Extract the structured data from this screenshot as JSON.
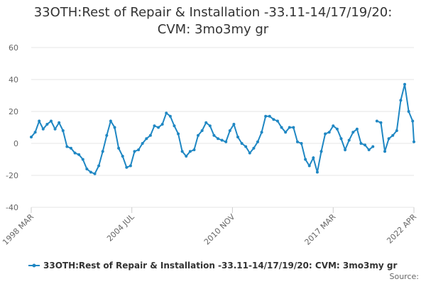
{
  "chart_data": {
    "type": "line",
    "title": "33OTH:Rest of Repair & Installation -33.11-14/17/19/20: CVM: 3mo3my gr",
    "source": "Source:",
    "x": [
      1998.17,
      1998.42,
      1998.67,
      1998.92,
      1999.17,
      1999.42,
      1999.67,
      1999.92,
      2000.17,
      2000.42,
      2000.67,
      2000.92,
      2001.17,
      2001.42,
      2001.67,
      2001.92,
      2002.17,
      2002.42,
      2002.67,
      2002.92,
      2003.17,
      2003.42,
      2003.67,
      2003.92,
      2004.17,
      2004.42,
      2004.67,
      2004.92,
      2005.17,
      2005.42,
      2005.67,
      2005.92,
      2006.17,
      2006.42,
      2006.67,
      2006.92,
      2007.17,
      2007.42,
      2007.67,
      2007.92,
      2008.17,
      2008.42,
      2008.67,
      2008.92,
      2009.17,
      2009.42,
      2009.67,
      2009.92,
      2010.17,
      2010.42,
      2010.67,
      2010.92,
      2011.17,
      2011.42,
      2011.67,
      2011.92,
      2012.17,
      2012.42,
      2012.67,
      2012.92,
      2013.17,
      2013.42,
      2013.67,
      2013.92,
      2014.17,
      2014.42,
      2014.67,
      2014.92,
      2015.17,
      2015.42,
      2015.67,
      2015.92,
      2016.17,
      2016.42,
      2016.67,
      2016.92,
      2017.17,
      2017.42,
      2017.67,
      2017.92,
      2018.17,
      2018.42,
      2018.67,
      2018.92,
      2019.17,
      2019.42,
      2019.67,
      2019.8,
      2019.92,
      2020.17,
      2020.42,
      2020.67,
      2020.92,
      2021.17,
      2021.42,
      2021.67,
      2021.92,
      2022.17,
      2022.25
    ],
    "series": [
      {
        "name": "33OTH:Rest of Repair & Installation -33.11-14/17/19/20: CVM: 3mo3my gr",
        "color": "#1f87c3",
        "values": [
          4,
          7,
          14,
          9,
          12,
          14,
          9,
          13,
          8,
          -2,
          -3,
          -6,
          -7,
          -10,
          -16,
          -18,
          -19,
          -14,
          -5,
          5,
          14,
          10,
          -3,
          -8,
          -15,
          -14,
          -5,
          -4,
          0,
          3,
          5,
          11,
          10,
          12,
          19,
          17,
          11,
          6,
          -5,
          -8,
          -5,
          -4,
          5,
          8,
          13,
          11,
          5,
          3,
          2,
          1,
          8,
          12,
          4,
          0,
          -2,
          -6,
          -3,
          1,
          7,
          17,
          17,
          15,
          14,
          10,
          7,
          10,
          10,
          1,
          0,
          -10,
          -14,
          -9,
          -18,
          -5,
          6,
          7,
          11,
          9,
          3,
          -4,
          2,
          7,
          9,
          0,
          -1,
          -4,
          -2,
          null,
          14,
          13,
          -5,
          3,
          5,
          8,
          27,
          37,
          20,
          14,
          1
        ]
      }
    ],
    "xlim": [
      1998.17,
      2022.25
    ],
    "xticks": [
      {
        "value": 1998.17,
        "label": "1998 MAR"
      },
      {
        "value": 2004.5,
        "label": "2004 JUL"
      },
      {
        "value": 2010.83,
        "label": "2010 NOV"
      },
      {
        "value": 2017.17,
        "label": "2017 MAR"
      },
      {
        "value": 2022.25,
        "label": "2022 APR"
      }
    ],
    "ylim": [
      -40,
      60
    ],
    "yticks": [
      -40,
      -20,
      0,
      20,
      40,
      60
    ],
    "grid": true,
    "legend": "bottom"
  }
}
